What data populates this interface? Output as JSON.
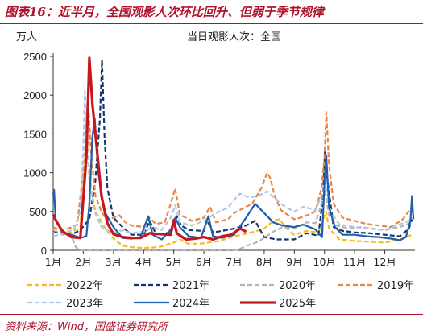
{
  "figure_title": "图表16：近半月，全国观影人次环比回升、但弱于季节规律",
  "source_note": "资料来源：Wind，国盛证券研究所",
  "colors": {
    "brand": "#b0122b",
    "s2022": "#f5bb1f",
    "s2021": "#16376b",
    "s2020": "#b5b5b5",
    "s2019": "#e8864a",
    "s2023": "#aec8e6",
    "s2024": "#1f5fae",
    "s2025": "#c8161d"
  },
  "chart_data": {
    "type": "line",
    "title": "当日观影人次：全国",
    "ylabel": "万人",
    "xlabel": "",
    "ylim": [
      0,
      2500
    ],
    "yticks": [
      0,
      500,
      1000,
      1500,
      2000,
      2500
    ],
    "xlim": [
      1,
      13
    ],
    "xtick_labels": [
      "1月",
      "2月",
      "3月",
      "4月",
      "5月",
      "6月",
      "7月",
      "8月",
      "9月",
      "10月",
      "11月",
      "12月"
    ],
    "grid": false,
    "legend_placement": "bottom",
    "series": [
      {
        "name": "2022年",
        "color_key": "s2022",
        "dash": "dash",
        "width": 2.2,
        "points": [
          [
            1.0,
            240
          ],
          [
            1.3,
            200
          ],
          [
            1.6,
            230
          ],
          [
            1.9,
            300
          ],
          [
            2.03,
            1050
          ],
          [
            2.08,
            1300
          ],
          [
            2.12,
            1600
          ],
          [
            2.2,
            900
          ],
          [
            2.4,
            500
          ],
          [
            2.7,
            300
          ],
          [
            3.0,
            150
          ],
          [
            3.3,
            60
          ],
          [
            3.6,
            40
          ],
          [
            4.0,
            30
          ],
          [
            4.5,
            40
          ],
          [
            5.0,
            100
          ],
          [
            5.2,
            140
          ],
          [
            5.5,
            80
          ],
          [
            6.0,
            90
          ],
          [
            6.5,
            120
          ],
          [
            7.0,
            180
          ],
          [
            7.5,
            220
          ],
          [
            8.0,
            280
          ],
          [
            8.3,
            380
          ],
          [
            8.5,
            400
          ],
          [
            8.8,
            260
          ],
          [
            9.0,
            200
          ],
          [
            9.4,
            250
          ],
          [
            9.8,
            230
          ],
          [
            10.05,
            500
          ],
          [
            10.15,
            280
          ],
          [
            10.5,
            140
          ],
          [
            11.0,
            120
          ],
          [
            11.5,
            110
          ],
          [
            12.0,
            100
          ],
          [
            12.5,
            140
          ],
          [
            12.9,
            200
          ]
        ]
      },
      {
        "name": "2021年",
        "color_key": "s2021",
        "dash": "dash",
        "width": 2.2,
        "points": [
          [
            1.0,
            250
          ],
          [
            1.3,
            210
          ],
          [
            1.6,
            200
          ],
          [
            1.9,
            260
          ],
          [
            2.2,
            400
          ],
          [
            2.4,
            900
          ],
          [
            2.55,
            1700
          ],
          [
            2.62,
            2450
          ],
          [
            2.7,
            1500
          ],
          [
            2.8,
            800
          ],
          [
            3.0,
            420
          ],
          [
            3.3,
            300
          ],
          [
            3.6,
            200
          ],
          [
            4.0,
            200
          ],
          [
            4.2,
            380
          ],
          [
            4.4,
            220
          ],
          [
            4.7,
            200
          ],
          [
            5.0,
            300
          ],
          [
            5.1,
            440
          ],
          [
            5.25,
            320
          ],
          [
            5.5,
            260
          ],
          [
            6.0,
            250
          ],
          [
            6.1,
            390
          ],
          [
            6.3,
            230
          ],
          [
            6.6,
            250
          ],
          [
            7.0,
            280
          ],
          [
            7.4,
            320
          ],
          [
            7.7,
            380
          ],
          [
            8.0,
            170
          ],
          [
            8.4,
            140
          ],
          [
            9.0,
            140
          ],
          [
            9.4,
            220
          ],
          [
            9.8,
            190
          ],
          [
            9.95,
            700
          ],
          [
            10.02,
            1320
          ],
          [
            10.1,
            900
          ],
          [
            10.3,
            300
          ],
          [
            10.6,
            250
          ],
          [
            11.0,
            230
          ],
          [
            11.5,
            220
          ],
          [
            12.0,
            200
          ],
          [
            12.5,
            180
          ],
          [
            12.8,
            280
          ],
          [
            12.9,
            400
          ]
        ]
      },
      {
        "name": "2020年",
        "color_key": "s2020",
        "dash": "dash",
        "width": 2.2,
        "points": [
          [
            1.0,
            260
          ],
          [
            1.3,
            220
          ],
          [
            1.6,
            180
          ],
          [
            1.75,
            40
          ],
          [
            1.9,
            0
          ],
          [
            2.5,
            0
          ],
          [
            3.0,
            0
          ],
          [
            4.0,
            0
          ],
          [
            5.0,
            0
          ],
          [
            6.0,
            0
          ],
          [
            7.0,
            0
          ],
          [
            7.2,
            20
          ],
          [
            7.5,
            70
          ],
          [
            7.8,
            110
          ],
          [
            8.0,
            160
          ],
          [
            8.3,
            240
          ],
          [
            8.6,
            300
          ],
          [
            9.0,
            280
          ],
          [
            9.4,
            360
          ],
          [
            9.7,
            350
          ],
          [
            9.9,
            600
          ],
          [
            10.02,
            760
          ],
          [
            10.15,
            450
          ],
          [
            10.4,
            320
          ],
          [
            10.8,
            280
          ],
          [
            11.2,
            300
          ],
          [
            11.6,
            280
          ],
          [
            12.0,
            260
          ],
          [
            12.5,
            300
          ],
          [
            12.9,
            360
          ]
        ]
      },
      {
        "name": "2019年",
        "color_key": "s2019",
        "dash": "dash",
        "width": 2.2,
        "points": [
          [
            1.0,
            300
          ],
          [
            1.2,
            260
          ],
          [
            1.5,
            280
          ],
          [
            1.8,
            330
          ],
          [
            2.05,
            1200
          ],
          [
            2.15,
            2000
          ],
          [
            2.25,
            1300
          ],
          [
            2.4,
            700
          ],
          [
            2.6,
            500
          ],
          [
            2.8,
            380
          ],
          [
            3.0,
            420
          ],
          [
            3.2,
            450
          ],
          [
            3.4,
            360
          ],
          [
            3.6,
            320
          ],
          [
            4.0,
            300
          ],
          [
            4.2,
            420
          ],
          [
            4.4,
            340
          ],
          [
            4.7,
            360
          ],
          [
            4.9,
            600
          ],
          [
            5.05,
            800
          ],
          [
            5.2,
            460
          ],
          [
            5.6,
            380
          ],
          [
            6.0,
            420
          ],
          [
            6.2,
            560
          ],
          [
            6.4,
            360
          ],
          [
            6.8,
            400
          ],
          [
            7.0,
            480
          ],
          [
            7.3,
            540
          ],
          [
            7.6,
            600
          ],
          [
            7.9,
            800
          ],
          [
            8.1,
            1000
          ],
          [
            8.2,
            930
          ],
          [
            8.35,
            700
          ],
          [
            8.55,
            520
          ],
          [
            8.8,
            450
          ],
          [
            9.0,
            400
          ],
          [
            9.3,
            430
          ],
          [
            9.7,
            500
          ],
          [
            9.9,
            800
          ],
          [
            10.0,
            1200
          ],
          [
            10.06,
            1780
          ],
          [
            10.15,
            1100
          ],
          [
            10.3,
            600
          ],
          [
            10.6,
            420
          ],
          [
            11.0,
            380
          ],
          [
            11.4,
            340
          ],
          [
            11.8,
            320
          ],
          [
            12.2,
            300
          ],
          [
            12.6,
            400
          ],
          [
            12.9,
            560
          ]
        ]
      },
      {
        "name": "2023年",
        "color_key": "s2023",
        "dash": "dash",
        "width": 2.2,
        "points": [
          [
            1.0,
            180
          ],
          [
            1.4,
            220
          ],
          [
            1.7,
            280
          ],
          [
            1.9,
            500
          ],
          [
            2.0,
            1300
          ],
          [
            2.05,
            2050
          ],
          [
            2.15,
            1200
          ],
          [
            2.35,
            520
          ],
          [
            2.6,
            300
          ],
          [
            3.0,
            220
          ],
          [
            3.3,
            260
          ],
          [
            3.6,
            220
          ],
          [
            4.0,
            240
          ],
          [
            4.3,
            300
          ],
          [
            4.6,
            260
          ],
          [
            4.9,
            420
          ],
          [
            5.05,
            580
          ],
          [
            5.2,
            360
          ],
          [
            5.6,
            320
          ],
          [
            6.0,
            380
          ],
          [
            6.4,
            480
          ],
          [
            6.8,
            550
          ],
          [
            7.0,
            650
          ],
          [
            7.2,
            730
          ],
          [
            7.5,
            680
          ],
          [
            7.8,
            700
          ],
          [
            8.1,
            760
          ],
          [
            8.4,
            650
          ],
          [
            8.7,
            560
          ],
          [
            9.0,
            500
          ],
          [
            9.3,
            560
          ],
          [
            9.7,
            520
          ],
          [
            9.9,
            700
          ],
          [
            10.05,
            880
          ],
          [
            10.2,
            500
          ],
          [
            10.5,
            330
          ],
          [
            11.0,
            300
          ],
          [
            11.5,
            280
          ],
          [
            12.0,
            260
          ],
          [
            12.4,
            320
          ],
          [
            12.8,
            380
          ],
          [
            12.95,
            420
          ]
        ]
      },
      {
        "name": "2024年",
        "color_key": "s2024",
        "dash": "solid",
        "width": 2.2,
        "points": [
          [
            1.0,
            720
          ],
          [
            1.03,
            780
          ],
          [
            1.08,
            400
          ],
          [
            1.3,
            230
          ],
          [
            1.6,
            200
          ],
          [
            1.9,
            160
          ],
          [
            2.1,
            180
          ],
          [
            2.2,
            600
          ],
          [
            2.3,
            1450
          ],
          [
            2.38,
            1700
          ],
          [
            2.5,
            1000
          ],
          [
            2.7,
            500
          ],
          [
            3.0,
            300
          ],
          [
            3.3,
            160
          ],
          [
            3.6,
            150
          ],
          [
            3.9,
            170
          ],
          [
            4.15,
            440
          ],
          [
            4.3,
            200
          ],
          [
            4.6,
            140
          ],
          [
            4.9,
            260
          ],
          [
            5.05,
            420
          ],
          [
            5.2,
            300
          ],
          [
            5.5,
            180
          ],
          [
            5.9,
            160
          ],
          [
            6.15,
            440
          ],
          [
            6.3,
            180
          ],
          [
            6.6,
            160
          ],
          [
            7.0,
            200
          ],
          [
            7.4,
            420
          ],
          [
            7.7,
            600
          ],
          [
            8.0,
            480
          ],
          [
            8.3,
            360
          ],
          [
            8.6,
            320
          ],
          [
            9.0,
            300
          ],
          [
            9.3,
            330
          ],
          [
            9.7,
            270
          ],
          [
            9.92,
            170
          ],
          [
            10.0,
            900
          ],
          [
            10.06,
            1220
          ],
          [
            10.15,
            550
          ],
          [
            10.35,
            300
          ],
          [
            10.6,
            200
          ],
          [
            11.0,
            200
          ],
          [
            11.4,
            180
          ],
          [
            11.8,
            170
          ],
          [
            12.2,
            150
          ],
          [
            12.5,
            130
          ],
          [
            12.7,
            170
          ],
          [
            12.85,
            380
          ],
          [
            12.9,
            700
          ],
          [
            12.95,
            400
          ]
        ]
      },
      {
        "name": "2025年",
        "color_key": "s2025",
        "dash": "solid",
        "width": 3.2,
        "points": [
          [
            1.0,
            460
          ],
          [
            1.1,
            380
          ],
          [
            1.3,
            250
          ],
          [
            1.6,
            170
          ],
          [
            1.9,
            160
          ],
          [
            2.1,
            1200
          ],
          [
            2.2,
            2480
          ],
          [
            2.3,
            1900
          ],
          [
            2.45,
            1300
          ],
          [
            2.6,
            700
          ],
          [
            2.8,
            350
          ],
          [
            3.0,
            210
          ],
          [
            3.3,
            170
          ],
          [
            3.6,
            160
          ],
          [
            3.9,
            160
          ],
          [
            4.2,
            220
          ],
          [
            4.5,
            210
          ],
          [
            4.9,
            200
          ],
          [
            5.0,
            390
          ],
          [
            5.1,
            220
          ],
          [
            5.4,
            140
          ],
          [
            5.7,
            150
          ],
          [
            6.0,
            170
          ],
          [
            6.3,
            140
          ],
          [
            6.6,
            180
          ],
          [
            6.9,
            200
          ],
          [
            7.2,
            280
          ],
          [
            7.4,
            240
          ]
        ]
      }
    ]
  }
}
